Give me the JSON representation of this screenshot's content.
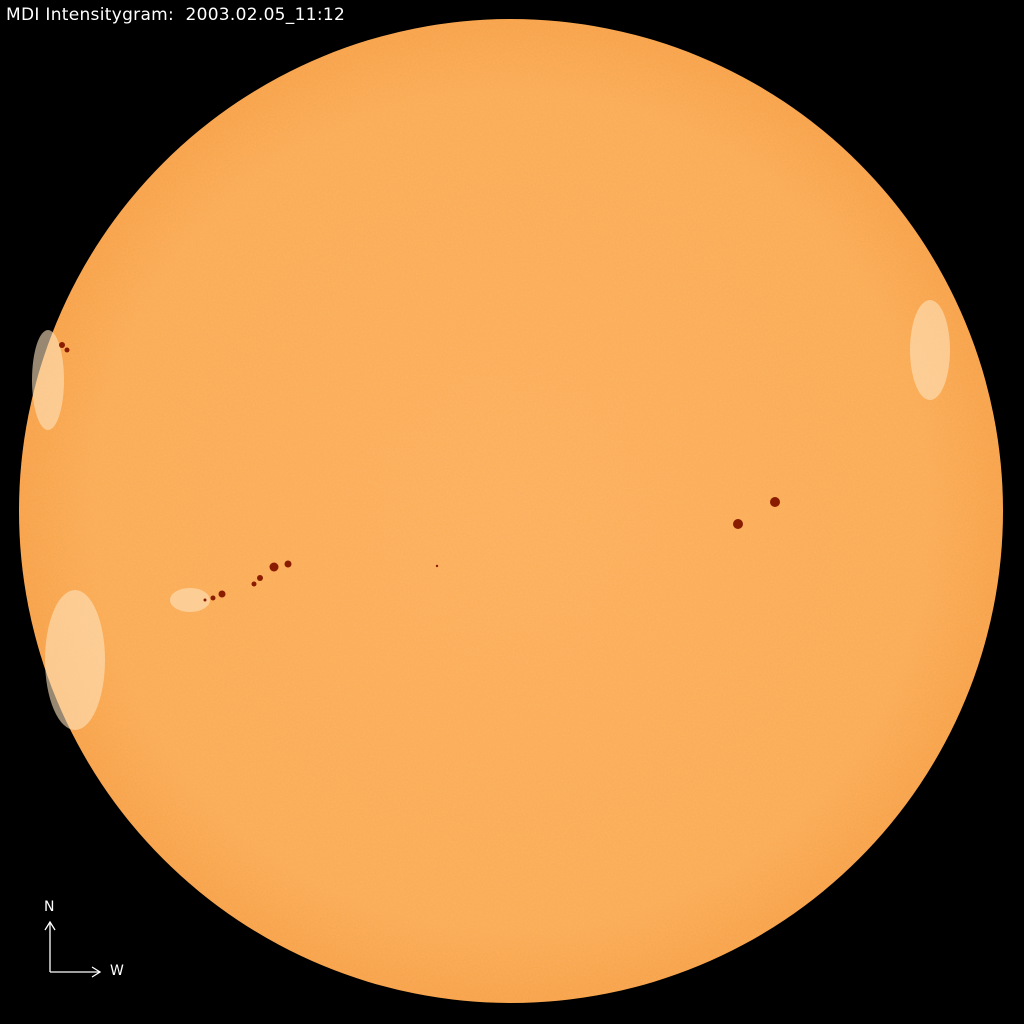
{
  "title": "MDI Intensitygram:  2003.02.05_11:12",
  "compass": {
    "north_label": "N",
    "west_label": "W"
  },
  "colors": {
    "background": "#000000",
    "disk": "#fbab55",
    "limb": "#f59a3c",
    "sunspot": "#8a1c00",
    "text": "#ffffff"
  }
}
